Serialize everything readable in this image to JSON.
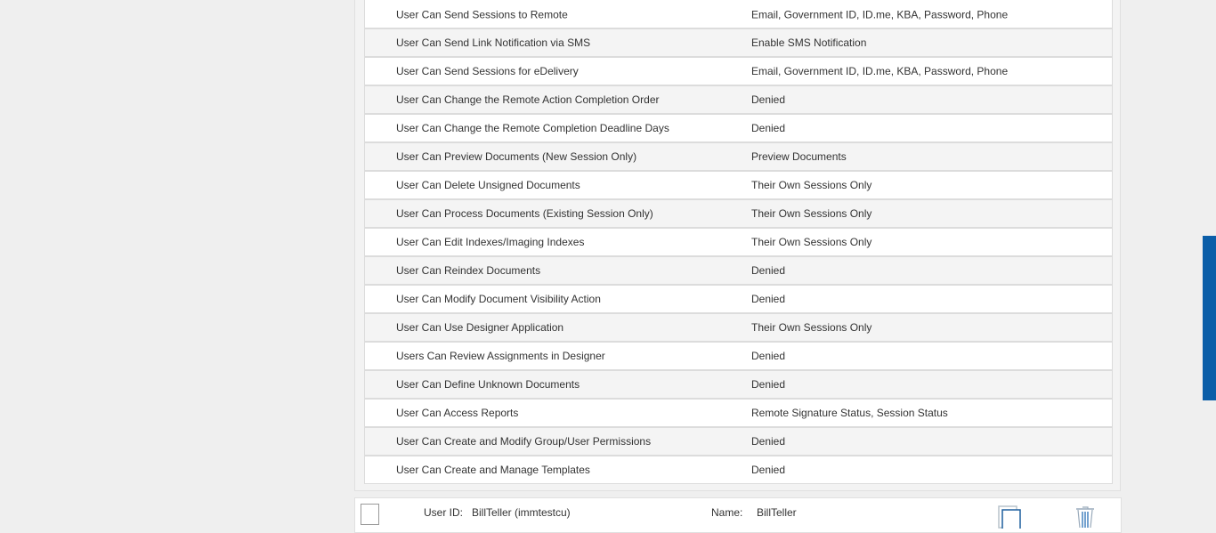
{
  "permissions": [
    {
      "label": "User Can Send Sessions to Remote",
      "value": "Email, Government ID, ID.me, KBA, Password, Phone"
    },
    {
      "label": "User Can Send Link Notification via SMS",
      "value": "Enable SMS Notification"
    },
    {
      "label": "User Can Send Sessions for eDelivery",
      "value": "Email, Government ID, ID.me, KBA, Password, Phone"
    },
    {
      "label": "User Can Change the Remote Action Completion Order",
      "value": "Denied"
    },
    {
      "label": "User Can Change the Remote Completion Deadline Days",
      "value": "Denied"
    },
    {
      "label": "User Can Preview Documents (New Session Only)",
      "value": "Preview Documents"
    },
    {
      "label": "User Can Delete Unsigned Documents",
      "value": "Their Own Sessions Only"
    },
    {
      "label": "User Can Process Documents (Existing Session Only)",
      "value": "Their Own Sessions Only"
    },
    {
      "label": "User Can Edit Indexes/Imaging Indexes",
      "value": "Their Own Sessions Only"
    },
    {
      "label": "User Can Reindex Documents",
      "value": "Denied"
    },
    {
      "label": "User Can Modify Document Visibility Action",
      "value": "Denied"
    },
    {
      "label": "User Can Use Designer Application",
      "value": "Their Own Sessions Only"
    },
    {
      "label": "Users Can Review Assignments in Designer",
      "value": "Denied"
    },
    {
      "label": "User Can Define Unknown Documents",
      "value": "Denied"
    },
    {
      "label": "User Can Access Reports",
      "value": "Remote Signature Status, Session Status"
    },
    {
      "label": "User Can Create and Modify Group/User Permissions",
      "value": "Denied"
    },
    {
      "label": "User Can Create and Manage Templates",
      "value": "Denied"
    }
  ],
  "user": {
    "user_id_label": "User ID:",
    "user_id": "BillTeller (immtestcu)",
    "name_label": "Name:",
    "name": "BillTeller"
  },
  "colors": {
    "accent": "#0b5ea8"
  },
  "icons": {
    "copy": "copy-icon",
    "delete": "trash-icon"
  }
}
